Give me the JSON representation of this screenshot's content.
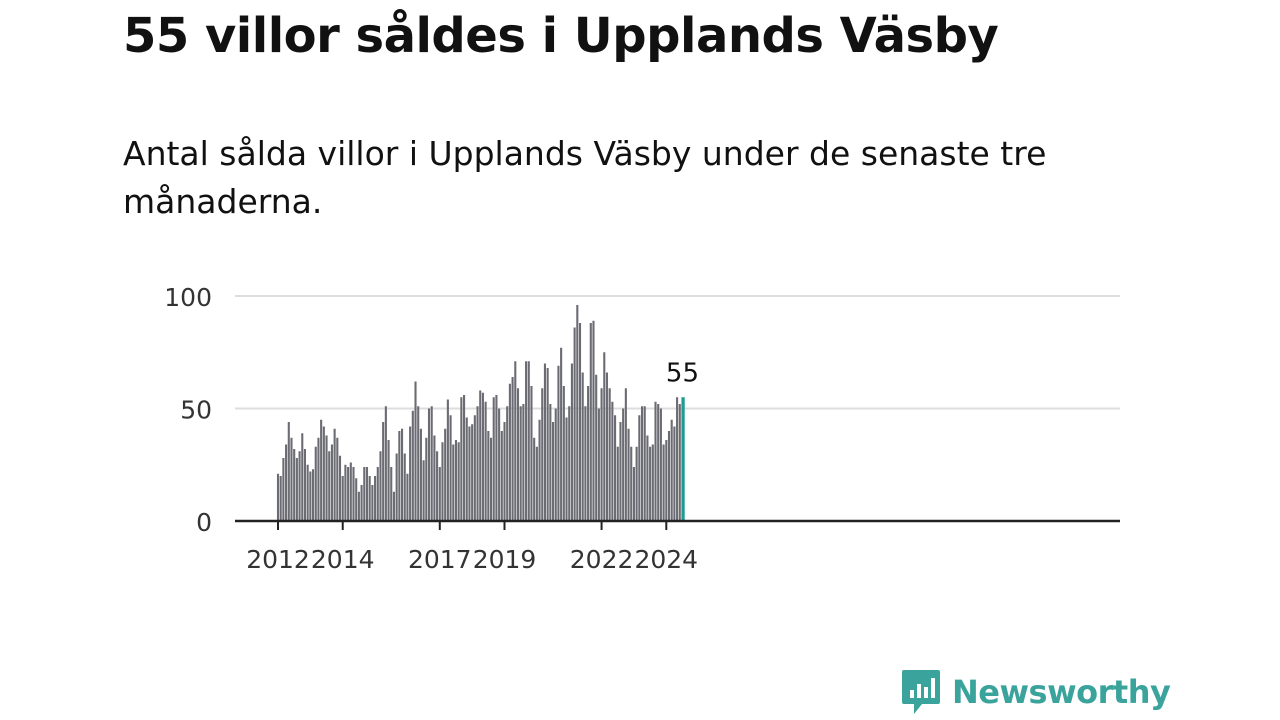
{
  "header": {
    "title": "55 villor såldes i Upplands Väsby",
    "subtitle": "Antal sålda villor i Upplands Väsby under de senaste tre månaderna."
  },
  "brand": {
    "name": "Newsworthy",
    "color": "#3aa39c"
  },
  "colors": {
    "bar": "#6b6b73",
    "highlight": "#1e9c94",
    "grid": "#dddddd",
    "axis": "#222222"
  },
  "chart_data": {
    "type": "bar",
    "title": "Antal sålda villor i Upplands Väsby",
    "ylim": [
      0,
      100
    ],
    "yticks": [
      0,
      50,
      100
    ],
    "start": "2012-01",
    "x_tick_labels": [
      {
        "label": "2012",
        "index": 0
      },
      {
        "label": "2014",
        "index": 24
      },
      {
        "label": "2017",
        "index": 60
      },
      {
        "label": "2019",
        "index": 84
      },
      {
        "label": "2022",
        "index": 120
      },
      {
        "label": "2024",
        "index": 144
      }
    ],
    "values": [
      21,
      20,
      28,
      34,
      44,
      37,
      32,
      28,
      31,
      39,
      32,
      25,
      22,
      23,
      33,
      37,
      45,
      42,
      38,
      31,
      34,
      41,
      37,
      29,
      20,
      25,
      24,
      26,
      24,
      19,
      13,
      16,
      24,
      24,
      20,
      16,
      20,
      24,
      31,
      44,
      51,
      36,
      24,
      13,
      30,
      40,
      41,
      30,
      21,
      42,
      49,
      62,
      51,
      41,
      27,
      37,
      50,
      51,
      38,
      31,
      24,
      35,
      41,
      54,
      47,
      34,
      36,
      35,
      55,
      56,
      46,
      42,
      43,
      47,
      51,
      58,
      57,
      53,
      40,
      37,
      55,
      56,
      50,
      40,
      44,
      51,
      61,
      64,
      71,
      59,
      51,
      52,
      71,
      71,
      60,
      37,
      33,
      45,
      59,
      70,
      68,
      52,
      44,
      50,
      69,
      77,
      60,
      46,
      51,
      70,
      86,
      96,
      88,
      66,
      51,
      60,
      88,
      89,
      65,
      50,
      59,
      75,
      66,
      59,
      53,
      47,
      33,
      44,
      50,
      59,
      41,
      33,
      24,
      33,
      47,
      51,
      51,
      38,
      33,
      34,
      53,
      52,
      50,
      34,
      36,
      40,
      45,
      42,
      55,
      52,
      55
    ],
    "highlight_last": true,
    "last_label": "55"
  }
}
